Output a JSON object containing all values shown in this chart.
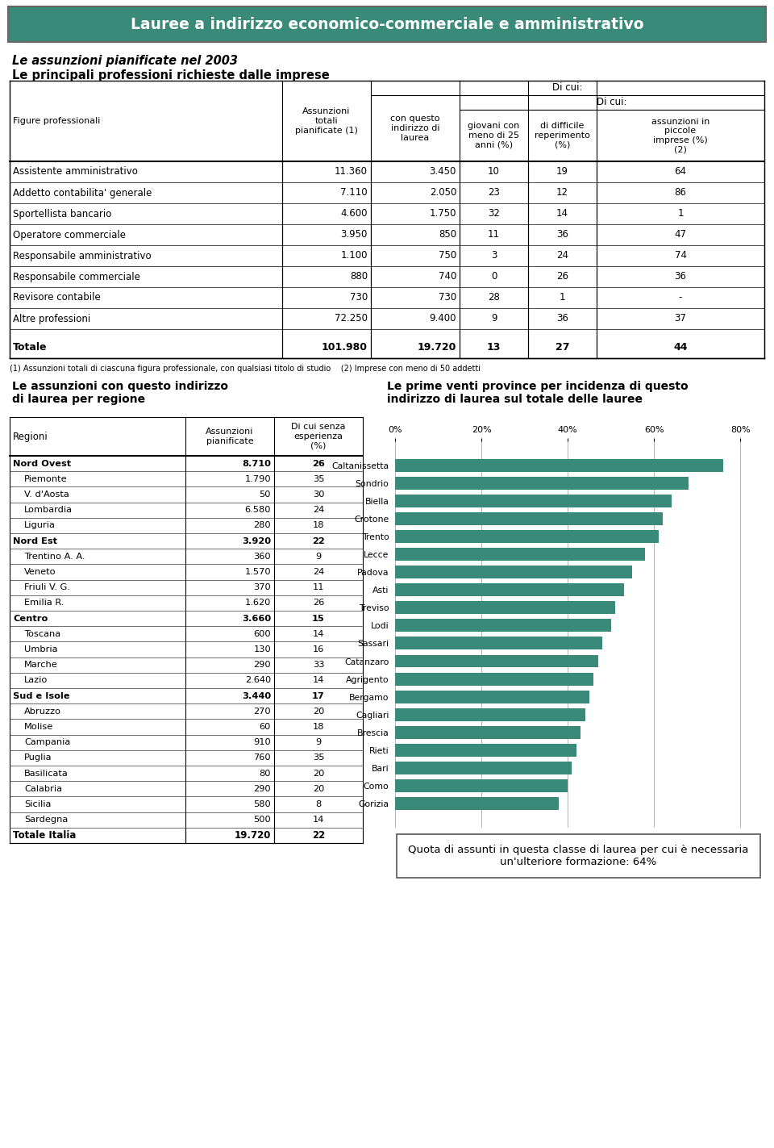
{
  "title": "Lauree a indirizzo economico-commerciale e amministrativo",
  "title_bg": "#3a8a7a",
  "title_color": "white",
  "section1_title": "Le assunzioni pianificate nel 2003",
  "section1_subtitle": "Le principali professioni richieste dalle imprese",
  "table1_rows": [
    {
      "name": "Assistente amministrativo",
      "col1": "11.360",
      "col2": "3.450",
      "col3": "10",
      "col4": "19",
      "col5": "64"
    },
    {
      "name": "Addetto contabilita' generale",
      "col1": "7.110",
      "col2": "2.050",
      "col3": "23",
      "col4": "12",
      "col5": "86"
    },
    {
      "name": "Sportellista bancario",
      "col1": "4.600",
      "col2": "1.750",
      "col3": "32",
      "col4": "14",
      "col5": "1"
    },
    {
      "name": "Operatore commerciale",
      "col1": "3.950",
      "col2": "850",
      "col3": "11",
      "col4": "36",
      "col5": "47"
    },
    {
      "name": "Responsabile amministrativo",
      "col1": "1.100",
      "col2": "750",
      "col3": "3",
      "col4": "24",
      "col5": "74"
    },
    {
      "name": "Responsabile commerciale",
      "col1": "880",
      "col2": "740",
      "col3": "0",
      "col4": "26",
      "col5": "36"
    },
    {
      "name": "Revisore contabile",
      "col1": "730",
      "col2": "730",
      "col3": "28",
      "col4": "1",
      "col5": "-"
    },
    {
      "name": "Altre professioni",
      "col1": "72.250",
      "col2": "9.400",
      "col3": "9",
      "col4": "36",
      "col5": "37"
    }
  ],
  "table1_total": {
    "name": "Totale",
    "col1": "101.980",
    "col2": "19.720",
    "col3": "13",
    "col4": "27",
    "col5": "44"
  },
  "table1_footnote": "(1) Assunzioni totali di ciascuna figura professionale, con qualsiasi titolo di studio    (2) Imprese con meno di 50 addetti",
  "section2_title": "Le assunzioni con questo indirizzo\ndi laurea per regione",
  "section3_title": "Le prime venti province per incidenza di questo\nindirizzo di laurea sul totale delle lauree",
  "table2_rows": [
    {
      "name": "Nord Ovest",
      "col1": "8.710",
      "col2": "26",
      "bold": true,
      "indent": false
    },
    {
      "name": "Piemonte",
      "col1": "1.790",
      "col2": "35",
      "bold": false,
      "indent": true
    },
    {
      "name": "V. d'Aosta",
      "col1": "50",
      "col2": "30",
      "bold": false,
      "indent": true
    },
    {
      "name": "Lombardia",
      "col1": "6.580",
      "col2": "24",
      "bold": false,
      "indent": true
    },
    {
      "name": "Liguria",
      "col1": "280",
      "col2": "18",
      "bold": false,
      "indent": true
    },
    {
      "name": "Nord Est",
      "col1": "3.920",
      "col2": "22",
      "bold": true,
      "indent": false
    },
    {
      "name": "Trentino A. A.",
      "col1": "360",
      "col2": "9",
      "bold": false,
      "indent": true
    },
    {
      "name": "Veneto",
      "col1": "1.570",
      "col2": "24",
      "bold": false,
      "indent": true
    },
    {
      "name": "Friuli V. G.",
      "col1": "370",
      "col2": "11",
      "bold": false,
      "indent": true
    },
    {
      "name": "Emilia R.",
      "col1": "1.620",
      "col2": "26",
      "bold": false,
      "indent": true
    },
    {
      "name": "Centro",
      "col1": "3.660",
      "col2": "15",
      "bold": true,
      "indent": false
    },
    {
      "name": "Toscana",
      "col1": "600",
      "col2": "14",
      "bold": false,
      "indent": true
    },
    {
      "name": "Umbria",
      "col1": "130",
      "col2": "16",
      "bold": false,
      "indent": true
    },
    {
      "name": "Marche",
      "col1": "290",
      "col2": "33",
      "bold": false,
      "indent": true
    },
    {
      "name": "Lazio",
      "col1": "2.640",
      "col2": "14",
      "bold": false,
      "indent": true
    },
    {
      "name": "Sud e Isole",
      "col1": "3.440",
      "col2": "17",
      "bold": true,
      "indent": false
    },
    {
      "name": "Abruzzo",
      "col1": "270",
      "col2": "20",
      "bold": false,
      "indent": true
    },
    {
      "name": "Molise",
      "col1": "60",
      "col2": "18",
      "bold": false,
      "indent": true
    },
    {
      "name": "Campania",
      "col1": "910",
      "col2": "9",
      "bold": false,
      "indent": true
    },
    {
      "name": "Puglia",
      "col1": "760",
      "col2": "35",
      "bold": false,
      "indent": true
    },
    {
      "name": "Basilicata",
      "col1": "80",
      "col2": "20",
      "bold": false,
      "indent": true
    },
    {
      "name": "Calabria",
      "col1": "290",
      "col2": "20",
      "bold": false,
      "indent": true
    },
    {
      "name": "Sicilia",
      "col1": "580",
      "col2": "8",
      "bold": false,
      "indent": true
    },
    {
      "name": "Sardegna",
      "col1": "500",
      "col2": "14",
      "bold": false,
      "indent": true
    }
  ],
  "table2_total": {
    "name": "Totale Italia",
    "col1": "19.720",
    "col2": "22"
  },
  "bar_provinces": [
    "Caltanissetta",
    "Sondrio",
    "Biella",
    "Crotone",
    "Trento",
    "Lecce",
    "Padova",
    "Asti",
    "Treviso",
    "Lodi",
    "Sassari",
    "Catanzaro",
    "Agrigento",
    "Bergamo",
    "Cagliari",
    "Brescia",
    "Rieti",
    "Bari",
    "Como",
    "Gorizia"
  ],
  "bar_values": [
    76,
    68,
    64,
    62,
    61,
    58,
    55,
    53,
    51,
    50,
    48,
    47,
    46,
    45,
    44,
    43,
    42,
    41,
    40,
    38
  ],
  "bar_color": "#3a8a7a",
  "quota_text": "Quota di assunti in questa classe di laurea per cui è necessaria\nun'ulteriore formazione: 64%"
}
